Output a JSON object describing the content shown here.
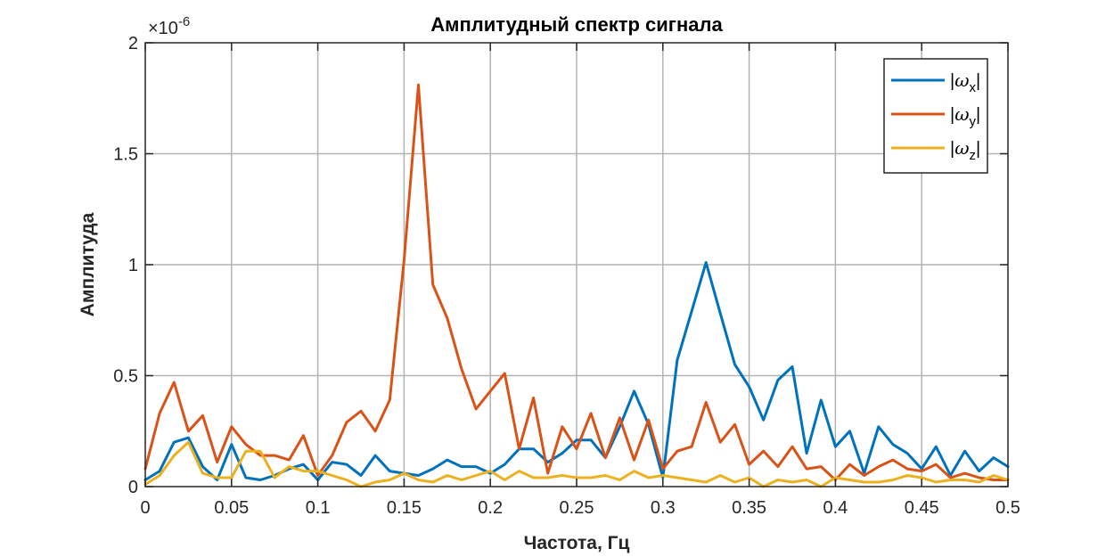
{
  "chart_data": {
    "type": "line",
    "title": "Амплитудный спектр сигнала",
    "xlabel": "Частота, Гц",
    "ylabel": "Амплитуда",
    "y_exponent_label": "×10",
    "y_exponent_power": "-6",
    "xlim": [
      0,
      0.5
    ],
    "ylim": [
      0,
      2
    ],
    "grid": true,
    "legend_position": "top-right",
    "x_ticks": [
      0,
      0.05,
      0.1,
      0.15,
      0.2,
      0.25,
      0.3,
      0.35,
      0.4,
      0.45,
      0.5
    ],
    "x_tick_labels": [
      "0",
      "0.05",
      "0.1",
      "0.15",
      "0.2",
      "0.25",
      "0.3",
      "0.35",
      "0.4",
      "0.45",
      "0.5"
    ],
    "y_ticks": [
      0,
      0.5,
      1,
      1.5,
      2
    ],
    "y_tick_labels": [
      "0",
      "0.5",
      "1",
      "1.5",
      "2"
    ],
    "x": [
      0.0,
      0.0083,
      0.0167,
      0.025,
      0.0333,
      0.0417,
      0.05,
      0.0583,
      0.0667,
      0.075,
      0.0833,
      0.0917,
      0.1,
      0.1083,
      0.1167,
      0.125,
      0.1333,
      0.1417,
      0.15,
      0.1583,
      0.1667,
      0.175,
      0.1833,
      0.1917,
      0.2,
      0.2083,
      0.2167,
      0.225,
      0.2333,
      0.2417,
      0.25,
      0.2583,
      0.2667,
      0.275,
      0.2833,
      0.2917,
      0.3,
      0.3083,
      0.3167,
      0.325,
      0.3333,
      0.3417,
      0.35,
      0.3583,
      0.3667,
      0.375,
      0.3833,
      0.3917,
      0.4,
      0.4083,
      0.4167,
      0.425,
      0.4333,
      0.4417,
      0.45,
      0.4583,
      0.4667,
      0.475,
      0.4833,
      0.4917,
      0.5
    ],
    "series": [
      {
        "name": "ω",
        "subscript": "x",
        "color": "#0072BD",
        "values": [
          0.03,
          0.07,
          0.2,
          0.22,
          0.09,
          0.03,
          0.19,
          0.04,
          0.03,
          0.05,
          0.08,
          0.1,
          0.03,
          0.11,
          0.1,
          0.05,
          0.14,
          0.07,
          0.06,
          0.05,
          0.08,
          0.12,
          0.09,
          0.09,
          0.06,
          0.1,
          0.17,
          0.17,
          0.11,
          0.15,
          0.21,
          0.21,
          0.13,
          0.27,
          0.43,
          0.28,
          0.04,
          0.57,
          0.79,
          1.01,
          0.78,
          0.55,
          0.45,
          0.3,
          0.48,
          0.54,
          0.15,
          0.39,
          0.18,
          0.25,
          0.06,
          0.27,
          0.19,
          0.15,
          0.08,
          0.18,
          0.05,
          0.16,
          0.07,
          0.13,
          0.09
        ]
      },
      {
        "name": "ω",
        "subscript": "y",
        "color": "#D95319",
        "values": [
          0.08,
          0.33,
          0.47,
          0.25,
          0.32,
          0.11,
          0.27,
          0.19,
          0.14,
          0.14,
          0.12,
          0.23,
          0.05,
          0.14,
          0.29,
          0.34,
          0.25,
          0.39,
          1.02,
          1.81,
          0.91,
          0.76,
          0.53,
          0.35,
          0.43,
          0.51,
          0.17,
          0.4,
          0.06,
          0.27,
          0.17,
          0.33,
          0.13,
          0.31,
          0.12,
          0.3,
          0.08,
          0.16,
          0.18,
          0.38,
          0.2,
          0.28,
          0.1,
          0.16,
          0.09,
          0.18,
          0.08,
          0.09,
          0.03,
          0.1,
          0.05,
          0.09,
          0.12,
          0.08,
          0.07,
          0.1,
          0.04,
          0.06,
          0.04,
          0.03,
          0.03
        ]
      },
      {
        "name": "ω",
        "subscript": "z",
        "color": "#EDB120",
        "values": [
          0.01,
          0.05,
          0.14,
          0.2,
          0.06,
          0.04,
          0.04,
          0.16,
          0.16,
          0.04,
          0.09,
          0.07,
          0.07,
          0.05,
          0.03,
          0.0,
          0.02,
          0.03,
          0.06,
          0.03,
          0.02,
          0.05,
          0.03,
          0.05,
          0.07,
          0.03,
          0.07,
          0.04,
          0.04,
          0.05,
          0.04,
          0.04,
          0.05,
          0.03,
          0.07,
          0.04,
          0.05,
          0.04,
          0.03,
          0.02,
          0.05,
          0.02,
          0.04,
          0.0,
          0.03,
          0.02,
          0.03,
          0.0,
          0.04,
          0.03,
          0.02,
          0.02,
          0.03,
          0.05,
          0.04,
          0.02,
          0.03,
          0.03,
          0.02,
          0.05,
          0.03
        ]
      }
    ]
  }
}
